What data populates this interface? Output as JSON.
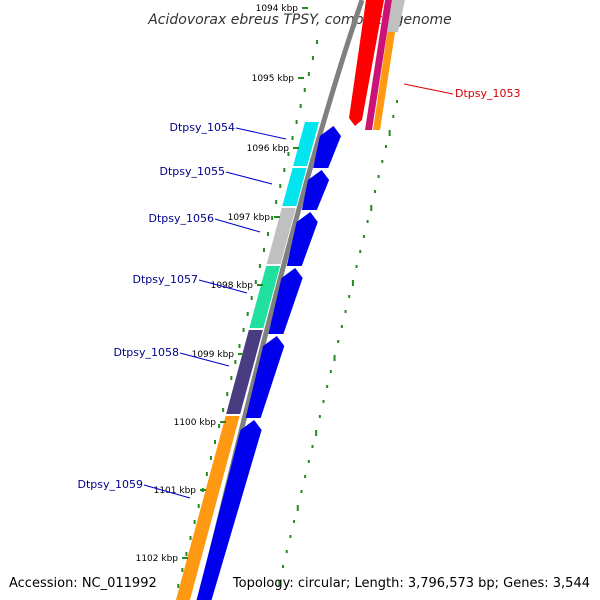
{
  "title": "Acidovorax ebreus TPSY, complete genome",
  "footer": {
    "accession": "Accession: NC_011992",
    "summary": "Topology: circular; Length: 3,796,573 bp; Genes: 3,544"
  },
  "scale_ticks": [
    "1094 kbp",
    "1095 kbp",
    "1096 kbp",
    "1097 kbp",
    "1098 kbp",
    "1099 kbp",
    "1100 kbp",
    "1101 kbp",
    "1102 kbp"
  ],
  "genes": [
    {
      "id": "Dtpsy_1053",
      "color": "#d40000"
    },
    {
      "id": "Dtpsy_1054",
      "color": "#00008b"
    },
    {
      "id": "Dtpsy_1055",
      "color": "#00008b"
    },
    {
      "id": "Dtpsy_1056",
      "color": "#00008b"
    },
    {
      "id": "Dtpsy_1057",
      "color": "#00008b"
    },
    {
      "id": "Dtpsy_1058",
      "color": "#00008b"
    },
    {
      "id": "Dtpsy_1059",
      "color": "#00008b"
    }
  ],
  "colors": {
    "cds_forward": "#0000ee",
    "backbone": "#808080",
    "gc_skew_dots": "#228b22",
    "cog_cyan": "#00e5ee",
    "cog_gray": "#c0c0c0",
    "cog_green": "#20e0a0",
    "cog_purple": "#4a3c80",
    "cog_orange": "#ff9912",
    "red_feature": "#ff0000"
  }
}
